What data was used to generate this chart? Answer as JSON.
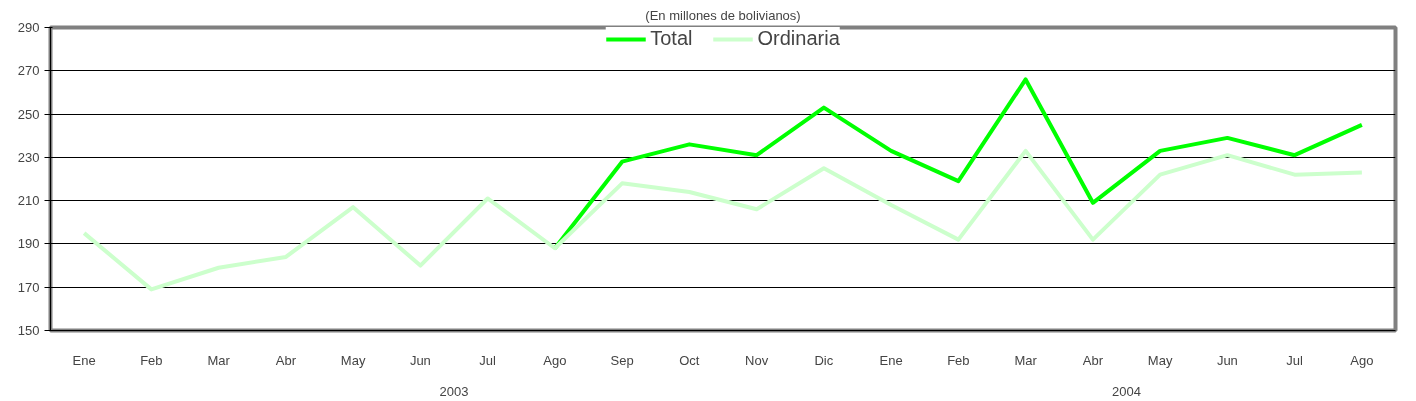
{
  "chart_data": {
    "type": "line",
    "title": "(En millones de bolivianos)",
    "categories": [
      "Ene",
      "Feb",
      "Mar",
      "Abr",
      "May",
      "Jun",
      "Jul",
      "Ago",
      "Sep",
      "Oct",
      "Nov",
      "Dic",
      "Ene",
      "Feb",
      "Mar",
      "Abr",
      "May",
      "Jun",
      "Jul",
      "Ago"
    ],
    "series": [
      {
        "name": "Total",
        "color": "#00ff00",
        "values": [
          null,
          null,
          null,
          null,
          null,
          null,
          null,
          188,
          228,
          236,
          231,
          253,
          233,
          219,
          266,
          209,
          233,
          239,
          231,
          245
        ]
      },
      {
        "name": "Ordinaria",
        "color": "#ccffcc",
        "values": [
          195,
          169,
          179,
          184,
          207,
          180,
          211,
          188,
          218,
          214,
          206,
          225,
          208,
          192,
          233,
          192,
          222,
          231,
          222,
          223
        ]
      }
    ],
    "annotations": [
      "2003",
      "2004"
    ],
    "ylim": [
      150,
      290
    ],
    "yticks": [
      150,
      170,
      190,
      210,
      230,
      250,
      270,
      290
    ],
    "grid": "y",
    "legend": "top",
    "marker": "none",
    "line_style": "solid"
  }
}
